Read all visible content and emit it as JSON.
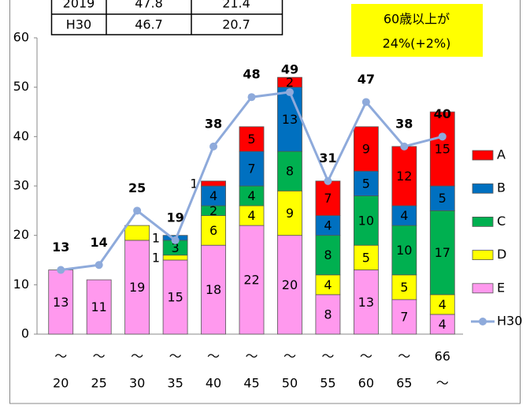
{
  "table": {
    "rows": [
      [
        "2019",
        "47.8",
        "21.4"
      ],
      [
        "H30",
        "46.7",
        "20.7"
      ]
    ]
  },
  "chart_data": {
    "type": "bar",
    "stacked": true,
    "annotation": [
      "60歳以上が",
      "24%(+2%)"
    ],
    "categories": [
      [
        "～",
        "20"
      ],
      [
        "～",
        "25"
      ],
      [
        "～",
        "30"
      ],
      [
        "～",
        "35"
      ],
      [
        "～",
        "40"
      ],
      [
        "～",
        "45"
      ],
      [
        "～",
        "50"
      ],
      [
        "～",
        "55"
      ],
      [
        "～",
        "60"
      ],
      [
        "～",
        "65"
      ],
      [
        "66",
        "～"
      ]
    ],
    "series": [
      {
        "name": "A",
        "color": "#ff0000",
        "values": [
          null,
          null,
          null,
          null,
          1,
          5,
          2,
          7,
          9,
          12,
          15
        ]
      },
      {
        "name": "B",
        "color": "#0070c0",
        "values": [
          null,
          null,
          null,
          1,
          4,
          7,
          13,
          4,
          5,
          4,
          5
        ]
      },
      {
        "name": "C",
        "color": "#00b050",
        "values": [
          null,
          null,
          null,
          3,
          2,
          4,
          8,
          8,
          10,
          10,
          17
        ]
      },
      {
        "name": "D",
        "color": "#ffff00",
        "values": [
          null,
          null,
          3,
          1,
          6,
          4,
          9,
          4,
          5,
          5,
          4
        ],
        "value_labels": [
          null,
          null,
          null,
          "1",
          "6",
          "4",
          "9",
          "4",
          "5",
          "5",
          "4"
        ]
      },
      {
        "name": "E",
        "color": "#ff99ee",
        "values": [
          13,
          11,
          19,
          15,
          18,
          22,
          20,
          8,
          13,
          7,
          4
        ]
      }
    ],
    "line": {
      "name": "H30",
      "color": "#8eaadb",
      "values": [
        13,
        14,
        25,
        19,
        38,
        48,
        49,
        31,
        47,
        38,
        40
      ]
    },
    "ylim": [
      0,
      60
    ],
    "yticks": [
      0,
      10,
      20,
      30,
      40,
      50,
      60
    ],
    "grid": false
  }
}
